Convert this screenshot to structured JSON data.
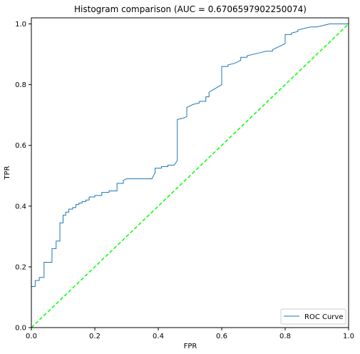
{
  "chart_data": {
    "type": "line",
    "title": "Histogram comparison (AUC = 0.6706597902250074)",
    "xlabel": "FPR",
    "ylabel": "TPR",
    "xlim": [
      0,
      1
    ],
    "ylim": [
      0,
      1.02
    ],
    "xticks": [
      0.0,
      0.2,
      0.4,
      0.6,
      0.8,
      1.0
    ],
    "yticks": [
      0.0,
      0.2,
      0.4,
      0.6,
      0.8,
      1.0
    ],
    "xtick_labels": [
      "0.0",
      "0.2",
      "0.4",
      "0.6",
      "0.8",
      "1.0"
    ],
    "ytick_labels": [
      "0.0",
      "0.2",
      "0.4",
      "0.6",
      "0.8",
      "1.0"
    ],
    "grid": false,
    "legend": {
      "position": "lower-right",
      "entries": [
        {
          "label": "ROC Curve"
        }
      ]
    },
    "series": [
      {
        "name": "ROC Curve",
        "color": "#1f77b4",
        "style": "solid",
        "x": [
          0.0,
          0.0,
          0.012,
          0.012,
          0.025,
          0.025,
          0.04,
          0.04,
          0.065,
          0.065,
          0.078,
          0.078,
          0.09,
          0.09,
          0.1,
          0.1,
          0.108,
          0.108,
          0.118,
          0.118,
          0.13,
          0.13,
          0.14,
          0.14,
          0.15,
          0.15,
          0.16,
          0.16,
          0.172,
          0.172,
          0.182,
          0.182,
          0.2,
          0.2,
          0.222,
          0.222,
          0.245,
          0.245,
          0.27,
          0.27,
          0.29,
          0.29,
          0.3,
          0.38,
          0.385,
          0.39,
          0.39,
          0.41,
          0.41,
          0.43,
          0.43,
          0.45,
          0.46,
          0.46,
          0.48,
          0.49,
          0.49,
          0.51,
          0.53,
          0.53,
          0.55,
          0.55,
          0.56,
          0.56,
          0.6,
          0.6,
          0.62,
          0.62,
          0.64,
          0.66,
          0.66,
          0.68,
          0.68,
          0.7,
          0.72,
          0.74,
          0.76,
          0.76,
          0.8,
          0.8,
          0.82,
          0.82,
          0.84,
          0.84,
          0.86,
          0.88,
          0.9,
          0.92,
          0.94,
          0.96,
          1.0
        ],
        "y": [
          0.0,
          0.135,
          0.135,
          0.155,
          0.155,
          0.165,
          0.165,
          0.215,
          0.215,
          0.26,
          0.26,
          0.285,
          0.285,
          0.345,
          0.345,
          0.37,
          0.37,
          0.38,
          0.38,
          0.39,
          0.39,
          0.395,
          0.395,
          0.405,
          0.405,
          0.41,
          0.41,
          0.415,
          0.415,
          0.42,
          0.42,
          0.43,
          0.43,
          0.435,
          0.435,
          0.445,
          0.445,
          0.45,
          0.45,
          0.475,
          0.475,
          0.485,
          0.49,
          0.49,
          0.5,
          0.51,
          0.525,
          0.525,
          0.53,
          0.53,
          0.535,
          0.535,
          0.55,
          0.685,
          0.69,
          0.695,
          0.725,
          0.735,
          0.74,
          0.745,
          0.745,
          0.76,
          0.76,
          0.775,
          0.8,
          0.86,
          0.86,
          0.865,
          0.87,
          0.88,
          0.89,
          0.89,
          0.895,
          0.9,
          0.905,
          0.91,
          0.91,
          0.915,
          0.935,
          0.965,
          0.965,
          0.97,
          0.975,
          0.98,
          0.985,
          0.99,
          0.99,
          0.995,
          1.0,
          1.0,
          1.0
        ]
      },
      {
        "name": "",
        "color": "#00ff00",
        "style": "dashed",
        "x": [
          0.0,
          1.0
        ],
        "y": [
          0.0,
          1.0
        ]
      }
    ]
  }
}
